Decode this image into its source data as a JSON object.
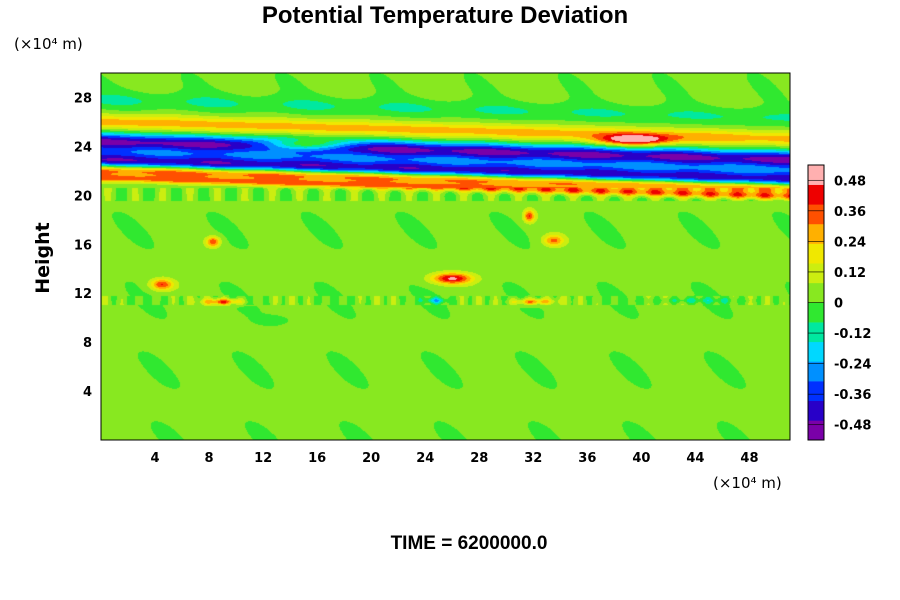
{
  "chart_data": {
    "type": "heatmap",
    "title": "Potential Temperature Deviation",
    "ylabel": "Height",
    "x_unit": "(×10⁴ m)",
    "y_unit": "(×10⁴ m)",
    "xlim": [
      0,
      51
    ],
    "ylim": [
      0,
      30
    ],
    "x_ticks": [
      "4",
      "8",
      "12",
      "16",
      "20",
      "24",
      "28",
      "32",
      "36",
      "40",
      "44",
      "48"
    ],
    "x_tick_values": [
      4,
      8,
      12,
      16,
      20,
      24,
      28,
      32,
      36,
      40,
      44,
      48
    ],
    "y_ticks": [
      "4",
      "8",
      "12",
      "16",
      "20",
      "24",
      "28"
    ],
    "y_tick_values": [
      4,
      8,
      12,
      16,
      20,
      24,
      28
    ],
    "colorbar": {
      "range": [
        -0.54,
        0.54
      ],
      "tick_labels": [
        "0.48",
        "0.36",
        "0.24",
        "0.12",
        "0",
        "-0.12",
        "-0.24",
        "-0.36",
        "-0.48"
      ],
      "tick_values": [
        0.48,
        0.36,
        0.24,
        0.12,
        0,
        -0.12,
        -0.24,
        -0.36,
        -0.48
      ],
      "colors": [
        "#7a00a8",
        "#2800c8",
        "#0030ff",
        "#0090ff",
        "#00d8ff",
        "#00e8a0",
        "#30e830",
        "#88e820",
        "#ccee10",
        "#f0e800",
        "#ffb000",
        "#ff5000",
        "#ee0000",
        "#ffb0b0"
      ]
    },
    "background_value": 0.02,
    "features": [
      {
        "kind": "band",
        "x0": 0,
        "y0": 22.8,
        "x1": 51,
        "y1": 21.2,
        "width": 1.0,
        "value": -0.5
      },
      {
        "kind": "band",
        "x0": 0,
        "y0": 24.4,
        "x1": 51,
        "y1": 22.9,
        "width": 0.9,
        "value": -0.5
      },
      {
        "kind": "band",
        "x0": 0,
        "y0": 22.1,
        "x1": 51,
        "y1": 20.6,
        "width": 0.6,
        "value": 0.5
      },
      {
        "kind": "band",
        "x0": 0,
        "y0": 21.4,
        "x1": 51,
        "y1": 19.9,
        "width": 0.4,
        "value": 0.3
      },
      {
        "kind": "band",
        "x0": 0,
        "y0": 26.0,
        "x1": 51,
        "y1": 24.6,
        "width": 0.8,
        "value": 0.25
      },
      {
        "kind": "band",
        "x0": 0,
        "y0": 27.8,
        "x1": 51,
        "y1": 26.3,
        "width": 0.9,
        "value": -0.1
      },
      {
        "kind": "blob",
        "x": 15.0,
        "y": 24.1,
        "rx": 3.5,
        "ry": 0.55,
        "value": 0.42
      },
      {
        "kind": "blob",
        "x": 39.5,
        "y": 24.5,
        "rx": 3.2,
        "ry": 0.55,
        "value": 0.42
      },
      {
        "kind": "blob",
        "x": 4.5,
        "y": 12.7,
        "rx": 1.0,
        "ry": 0.55,
        "value": 0.36
      },
      {
        "kind": "blob",
        "x": 8.3,
        "y": 16.2,
        "rx": 0.6,
        "ry": 0.5,
        "value": 0.36
      },
      {
        "kind": "blob",
        "x": 26.0,
        "y": 13.2,
        "rx": 1.8,
        "ry": 0.55,
        "value": 0.45
      },
      {
        "kind": "blob",
        "x": 31.7,
        "y": 18.3,
        "rx": 0.5,
        "ry": 0.6,
        "value": 0.36
      },
      {
        "kind": "blob",
        "x": 33.5,
        "y": 16.3,
        "rx": 0.9,
        "ry": 0.55,
        "value": 0.3
      },
      {
        "kind": "blob",
        "x": 9.0,
        "y": 11.3,
        "rx": 1.6,
        "ry": 0.3,
        "value": 0.36
      },
      {
        "kind": "blob",
        "x": 32.0,
        "y": 11.3,
        "rx": 1.8,
        "ry": 0.3,
        "value": 0.3
      },
      {
        "kind": "blob",
        "x": 24.8,
        "y": 11.4,
        "rx": 1.0,
        "ry": 0.25,
        "value": -0.2
      },
      {
        "kind": "blob",
        "x": 12.8,
        "y": 9.8,
        "rx": 1.2,
        "ry": 0.4,
        "value": -0.08
      },
      {
        "kind": "blob",
        "x": 44.0,
        "y": 11.4,
        "rx": 4.0,
        "ry": 0.25,
        "value": -0.1
      }
    ]
  },
  "footer": {
    "time_label": "TIME = 6200000.0"
  }
}
